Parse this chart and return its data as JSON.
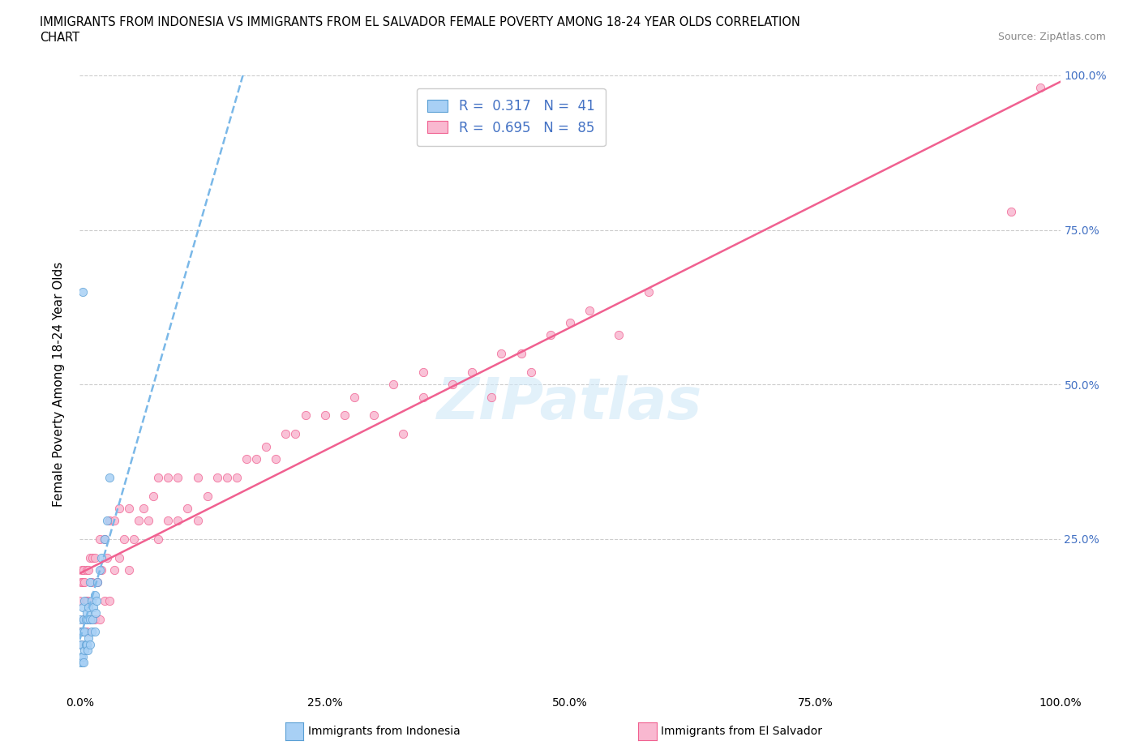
{
  "title_line1": "IMMIGRANTS FROM INDONESIA VS IMMIGRANTS FROM EL SALVADOR FEMALE POVERTY AMONG 18-24 YEAR OLDS CORRELATION",
  "title_line2": "CHART",
  "source": "Source: ZipAtlas.com",
  "ylabel": "Female Poverty Among 18-24 Year Olds",
  "xlim": [
    0.0,
    1.0
  ],
  "ylim": [
    0.0,
    1.0
  ],
  "xtick_vals": [
    0.0,
    0.25,
    0.5,
    0.75,
    1.0
  ],
  "xticklabels": [
    "0.0%",
    "25.0%",
    "50.0%",
    "75.0%",
    "100.0%"
  ],
  "ytick_vals": [
    0.0,
    0.25,
    0.5,
    0.75,
    1.0
  ],
  "yticklabels_right": [
    "",
    "25.0%",
    "50.0%",
    "75.0%",
    "100.0%"
  ],
  "color_indo_fill": "#A8D0F5",
  "color_indo_edge": "#5A9FD4",
  "color_salv_fill": "#F9B8D0",
  "color_salv_edge": "#F06090",
  "color_indo_line": "#7AB8E8",
  "color_salv_line": "#F06090",
  "legend_text_color": "#4472C4",
  "R_indo": 0.317,
  "N_indo": 41,
  "R_salv": 0.695,
  "N_salv": 85,
  "legend_label1": "Immigrants from Indonesia",
  "legend_label2": "Immigrants from El Salvador",
  "indo_x": [
    0.0,
    0.0,
    0.0,
    0.001,
    0.001,
    0.002,
    0.002,
    0.003,
    0.003,
    0.003,
    0.004,
    0.004,
    0.005,
    0.005,
    0.005,
    0.006,
    0.006,
    0.007,
    0.007,
    0.008,
    0.008,
    0.009,
    0.009,
    0.01,
    0.01,
    0.01,
    0.012,
    0.012,
    0.013,
    0.014,
    0.015,
    0.015,
    0.016,
    0.017,
    0.018,
    0.02,
    0.022,
    0.025,
    0.028,
    0.03,
    0.003
  ],
  "indo_y": [
    0.05,
    0.08,
    0.12,
    0.06,
    0.1,
    0.05,
    0.08,
    0.06,
    0.1,
    0.14,
    0.05,
    0.12,
    0.07,
    0.1,
    0.15,
    0.08,
    0.12,
    0.08,
    0.13,
    0.07,
    0.12,
    0.09,
    0.14,
    0.08,
    0.12,
    0.18,
    0.1,
    0.15,
    0.12,
    0.14,
    0.1,
    0.16,
    0.13,
    0.15,
    0.18,
    0.2,
    0.22,
    0.25,
    0.28,
    0.35,
    0.65
  ],
  "salv_x": [
    0.0,
    0.0,
    0.001,
    0.001,
    0.002,
    0.002,
    0.003,
    0.003,
    0.004,
    0.004,
    0.005,
    0.005,
    0.006,
    0.007,
    0.007,
    0.008,
    0.009,
    0.01,
    0.01,
    0.012,
    0.013,
    0.015,
    0.015,
    0.018,
    0.02,
    0.02,
    0.022,
    0.025,
    0.025,
    0.028,
    0.03,
    0.03,
    0.035,
    0.035,
    0.04,
    0.04,
    0.045,
    0.05,
    0.05,
    0.055,
    0.06,
    0.065,
    0.07,
    0.075,
    0.08,
    0.08,
    0.09,
    0.09,
    0.1,
    0.1,
    0.11,
    0.12,
    0.12,
    0.13,
    0.14,
    0.15,
    0.16,
    0.17,
    0.18,
    0.19,
    0.2,
    0.21,
    0.22,
    0.23,
    0.25,
    0.27,
    0.28,
    0.3,
    0.32,
    0.33,
    0.35,
    0.35,
    0.38,
    0.4,
    0.42,
    0.43,
    0.45,
    0.46,
    0.48,
    0.5,
    0.52,
    0.55,
    0.58,
    0.95,
    0.98
  ],
  "salv_y": [
    0.1,
    0.15,
    0.08,
    0.18,
    0.1,
    0.2,
    0.1,
    0.18,
    0.12,
    0.2,
    0.1,
    0.18,
    0.15,
    0.1,
    0.2,
    0.15,
    0.2,
    0.12,
    0.22,
    0.18,
    0.22,
    0.12,
    0.22,
    0.18,
    0.12,
    0.25,
    0.2,
    0.15,
    0.25,
    0.22,
    0.15,
    0.28,
    0.2,
    0.28,
    0.22,
    0.3,
    0.25,
    0.2,
    0.3,
    0.25,
    0.28,
    0.3,
    0.28,
    0.32,
    0.25,
    0.35,
    0.28,
    0.35,
    0.28,
    0.35,
    0.3,
    0.28,
    0.35,
    0.32,
    0.35,
    0.35,
    0.35,
    0.38,
    0.38,
    0.4,
    0.38,
    0.42,
    0.42,
    0.45,
    0.45,
    0.45,
    0.48,
    0.45,
    0.5,
    0.42,
    0.48,
    0.52,
    0.5,
    0.52,
    0.48,
    0.55,
    0.55,
    0.52,
    0.58,
    0.6,
    0.62,
    0.58,
    0.65,
    0.78,
    0.98
  ]
}
